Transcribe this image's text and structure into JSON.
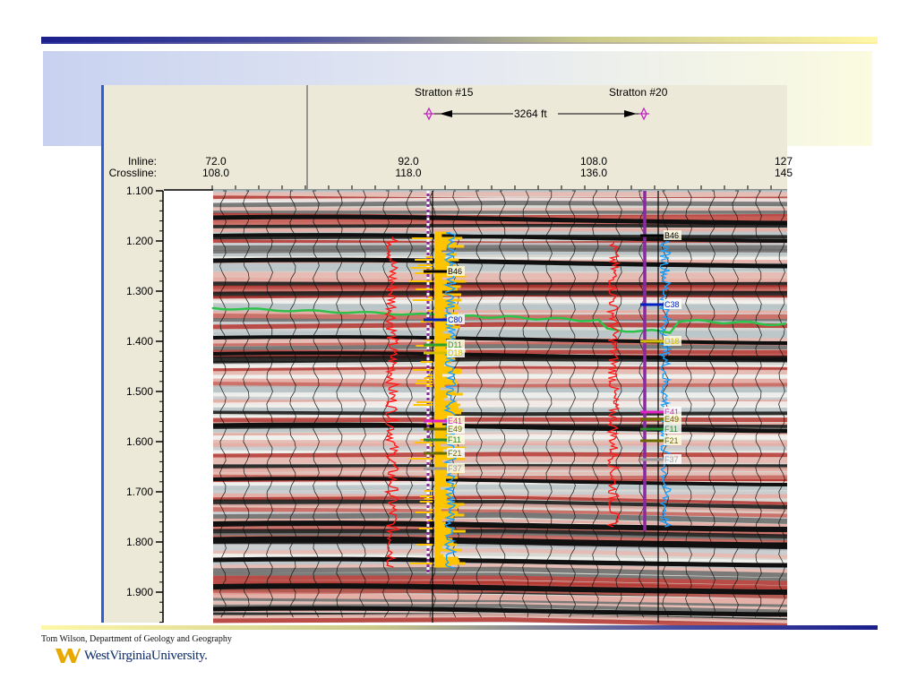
{
  "footer": {
    "credit": "Tom Wilson, Department of Geology and Geography",
    "university": "WestVirginiaUniversity."
  },
  "header": {
    "inline_label": "Inline:",
    "crossline_label": "Crossline:",
    "columns": [
      {
        "inline": "72.0",
        "crossline": "108.0"
      },
      {
        "inline": "92.0",
        "crossline": "118.0"
      },
      {
        "inline": "108.0",
        "crossline": "136.0"
      },
      {
        "inline": "127",
        "crossline": "145"
      }
    ]
  },
  "wells": [
    {
      "name": "Stratton #15"
    },
    {
      "name": "Stratton #20"
    }
  ],
  "distance": "3264 ft",
  "time_axis": {
    "ticks": [
      "1.100",
      "1.200",
      "1.300",
      "1.400",
      "1.500",
      "1.600",
      "1.700",
      "1.800",
      "1.900"
    ]
  },
  "well1_tops": [
    "B46",
    "C80",
    "D11",
    "D18",
    "E41",
    "E49",
    "F11",
    "F21",
    "F37"
  ],
  "well2_tops": [
    "B46",
    "C38",
    "D18",
    "E41",
    "E49",
    "F11",
    "F21",
    "F37"
  ],
  "colors": {
    "seismic_red": "#b4342e",
    "seismic_black": "#101010",
    "horizon": "#2ec24a",
    "log_red": "#ff1a1a",
    "log_yellow": "#ffc400",
    "log_blue": "#1aa0ff",
    "well2_track": "#8a2aa0"
  }
}
